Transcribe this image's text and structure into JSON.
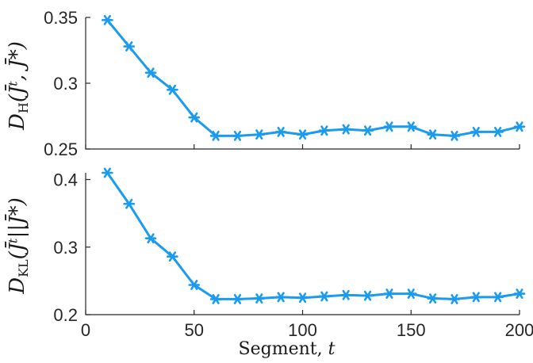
{
  "chart_data": [
    {
      "type": "line",
      "x": [
        10,
        20,
        30,
        40,
        50,
        60,
        70,
        80,
        90,
        100,
        110,
        120,
        130,
        140,
        150,
        160,
        170,
        180,
        190,
        200
      ],
      "series": [
        {
          "values": [
            0.348,
            0.328,
            0.308,
            0.295,
            0.274,
            0.26,
            0.26,
            0.261,
            0.263,
            0.261,
            0.264,
            0.265,
            0.264,
            0.267,
            0.267,
            0.261,
            0.26,
            0.263,
            0.263,
            0.267
          ]
        }
      ],
      "ylabel_main": "D",
      "ylabel_sub": "H",
      "ylabel_args": "(J̄ᵗ, J̄*)",
      "ylim": [
        0.25,
        0.35
      ],
      "yticks": [
        0.25,
        0.3,
        0.35
      ],
      "ytick_labels": [
        "0.25",
        "0.3",
        "0.35"
      ],
      "xlim": [
        0,
        200
      ],
      "grid": false
    },
    {
      "type": "line",
      "x": [
        10,
        20,
        30,
        40,
        50,
        60,
        70,
        80,
        90,
        100,
        110,
        120,
        130,
        140,
        150,
        160,
        170,
        180,
        190,
        200
      ],
      "series": [
        {
          "values": [
            0.41,
            0.364,
            0.313,
            0.286,
            0.244,
            0.223,
            0.223,
            0.224,
            0.226,
            0.225,
            0.227,
            0.229,
            0.228,
            0.231,
            0.231,
            0.224,
            0.223,
            0.226,
            0.226,
            0.231
          ]
        }
      ],
      "ylabel_main": "D",
      "ylabel_sub": "KL",
      "ylabel_args": "(J̄ᵗ||J̄*)",
      "ylim": [
        0.2,
        0.41
      ],
      "yticks": [
        0.2,
        0.3,
        0.4
      ],
      "ytick_labels": [
        "0.2",
        "0.3",
        "0.4"
      ],
      "xlim": [
        0,
        200
      ],
      "xticks": [
        0,
        50,
        100,
        150,
        200
      ],
      "xtick_labels": [
        "0",
        "50",
        "100",
        "150",
        "200"
      ],
      "xlabel_text": "Segment, ",
      "xlabel_var": "t",
      "grid": false
    }
  ],
  "colors": {
    "series": "#1a9bf0",
    "axis": "#262626"
  }
}
